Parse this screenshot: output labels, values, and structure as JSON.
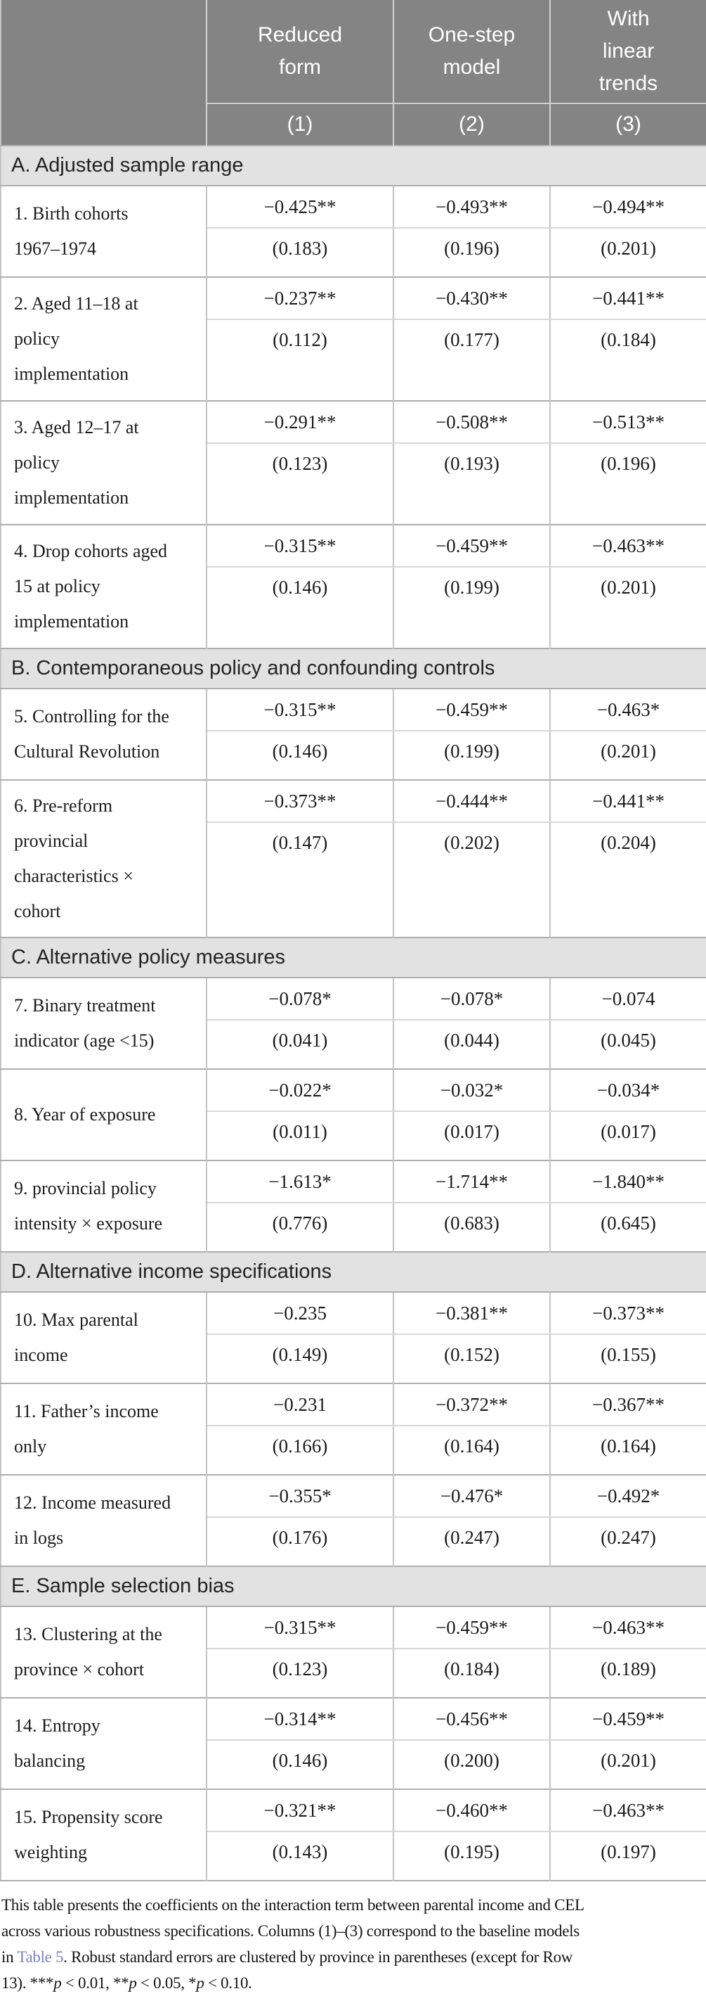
{
  "colors": {
    "header_bg": "#848484",
    "band_bg": "#e2e2e2",
    "link_color": "#7d82c1"
  },
  "header": {
    "col_labels": [
      "Reduced\nform",
      "One-step\nmodel",
      "With\nlinear\ntrends"
    ],
    "col_numbers": [
      "(1)",
      "(2)",
      "(3)"
    ]
  },
  "sections": [
    {
      "title": "A. Adjusted sample range",
      "rows": [
        {
          "label_lines": [
            "1. Birth cohorts",
            "1967–1974"
          ],
          "coefficients": [
            "−0.425**",
            "−0.493**",
            "−0.494**"
          ],
          "std_errors": [
            "(0.183)",
            "(0.196)",
            "(0.201)"
          ]
        },
        {
          "label_lines": [
            "2. Aged 11–18 at",
            "policy",
            "implementation"
          ],
          "coefficients": [
            "−0.237**",
            "−0.430**",
            "−0.441**"
          ],
          "std_errors": [
            "(0.112)",
            "(0.177)",
            "(0.184)"
          ]
        },
        {
          "label_lines": [
            "3. Aged 12–17 at",
            "policy",
            "implementation"
          ],
          "coefficients": [
            "−0.291**",
            "−0.508**",
            "−0.513**"
          ],
          "std_errors": [
            "(0.123)",
            "(0.193)",
            "(0.196)"
          ]
        },
        {
          "label_lines": [
            "4. Drop cohorts aged",
            "15 at policy",
            "implementation"
          ],
          "coefficients": [
            "−0.315**",
            "−0.459**",
            "−0.463**"
          ],
          "std_errors": [
            "(0.146)",
            "(0.199)",
            "(0.201)"
          ]
        }
      ]
    },
    {
      "title": "B. Contemporaneous policy and confounding controls",
      "rows": [
        {
          "label_lines": [
            "5. Controlling for the",
            "Cultural Revolution"
          ],
          "coefficients": [
            "−0.315**",
            "−0.459**",
            "−0.463*"
          ],
          "std_errors": [
            "(0.146)",
            "(0.199)",
            "(0.201)"
          ]
        },
        {
          "label_lines": [
            "6. Pre-reform",
            "provincial",
            "characteristics ×",
            "cohort"
          ],
          "coefficients": [
            "−0.373**",
            "−0.444**",
            "−0.441**"
          ],
          "std_errors": [
            "(0.147)",
            "(0.202)",
            "(0.204)"
          ]
        }
      ]
    },
    {
      "title": "C. Alternative policy measures",
      "rows": [
        {
          "label_lines": [
            "7. Binary treatment",
            "indicator (age <15)"
          ],
          "coefficients": [
            "−0.078*",
            "−0.078*",
            "−0.074"
          ],
          "std_errors": [
            "(0.041)",
            "(0.044)",
            "(0.045)"
          ]
        },
        {
          "label_lines": [
            "8. Year of exposure"
          ],
          "coefficients": [
            "−0.022*",
            "−0.032*",
            "−0.034*"
          ],
          "std_errors": [
            "(0.011)",
            "(0.017)",
            "(0.017)"
          ]
        },
        {
          "label_lines": [
            "9. provincial policy",
            "intensity × exposure"
          ],
          "coefficients": [
            "−1.613*",
            "−1.714**",
            "−1.840**"
          ],
          "std_errors": [
            "(0.776)",
            "(0.683)",
            "(0.645)"
          ]
        }
      ]
    },
    {
      "title": "D. Alternative income specifications",
      "rows": [
        {
          "label_lines": [
            "10. Max parental",
            "income"
          ],
          "coefficients": [
            "−0.235",
            "−0.381**",
            "−0.373**"
          ],
          "std_errors": [
            "(0.149)",
            "(0.152)",
            "(0.155)"
          ]
        },
        {
          "label_lines": [
            "11. Father’s income",
            "only"
          ],
          "coefficients": [
            "−0.231",
            "−0.372**",
            "−0.367**"
          ],
          "std_errors": [
            "(0.166)",
            "(0.164)",
            "(0.164)"
          ]
        },
        {
          "label_lines": [
            "12. Income measured",
            "in logs"
          ],
          "coefficients": [
            "−0.355*",
            "−0.476*",
            "−0.492*"
          ],
          "std_errors": [
            "(0.176)",
            "(0.247)",
            "(0.247)"
          ]
        }
      ]
    },
    {
      "title": "E. Sample selection bias",
      "rows": [
        {
          "label_lines": [
            "13. Clustering at the",
            "province × cohort"
          ],
          "coefficients": [
            "−0.315**",
            "−0.459**",
            "−0.463**"
          ],
          "std_errors": [
            "(0.123)",
            "(0.184)",
            "(0.189)"
          ]
        },
        {
          "label_lines": [
            "14. Entropy",
            "balancing"
          ],
          "coefficients": [
            "−0.314**",
            "−0.456**",
            "−0.459**"
          ],
          "std_errors": [
            "(0.146)",
            "(0.200)",
            "(0.201)"
          ]
        },
        {
          "label_lines": [
            "15. Propensity score",
            "weighting"
          ],
          "coefficients": [
            "−0.321**",
            "−0.460**",
            "−0.463**"
          ],
          "std_errors": [
            "(0.143)",
            "(0.195)",
            "(0.197)"
          ]
        }
      ]
    }
  ],
  "footnote": {
    "segments": [
      {
        "text": "This table presents the coefficients on the interaction term between parental income and CEL\nacross various robustness specifications. Columns (1)–(3) correspond to the baseline models\nin ",
        "style": "normal"
      },
      {
        "text": "Table 5",
        "style": "link"
      },
      {
        "text": ". Robust standard errors are clustered by province in parentheses (except for Row\n13). ***",
        "style": "normal"
      },
      {
        "text": "p",
        "style": "italic"
      },
      {
        "text": " < 0.01, **",
        "style": "normal"
      },
      {
        "text": "p",
        "style": "italic"
      },
      {
        "text": " < 0.05, *",
        "style": "normal"
      },
      {
        "text": "p",
        "style": "italic"
      },
      {
        "text": " < 0.10.",
        "style": "normal"
      }
    ]
  }
}
